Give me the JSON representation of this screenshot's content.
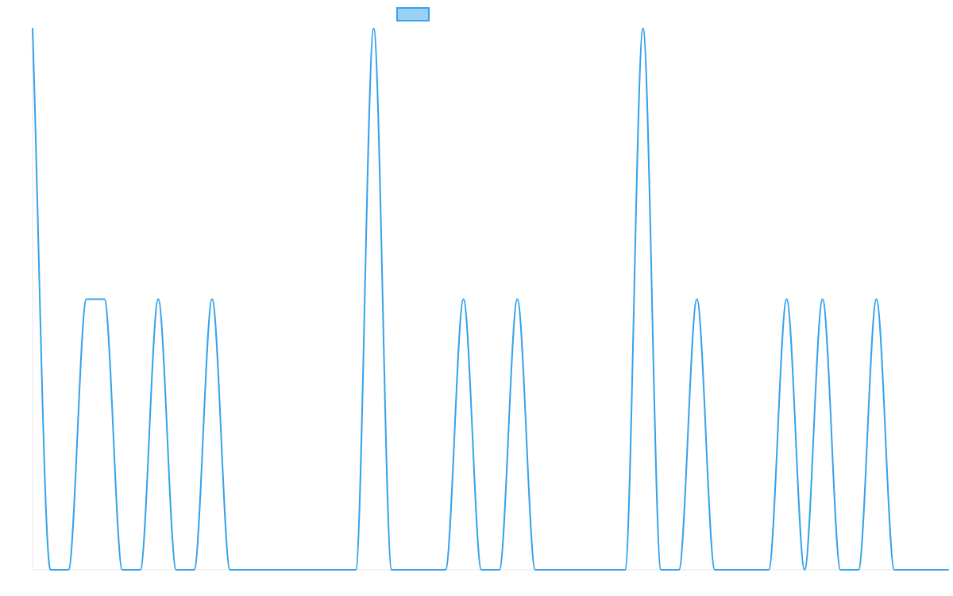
{
  "chart_data": {
    "type": "line",
    "title": "",
    "xlabel": "",
    "ylabel": "",
    "x_range": [
      0,
      51
    ],
    "ylim": [
      0,
      2
    ],
    "grid": false,
    "legend": {
      "placement": "top-center",
      "entries": [
        ""
      ]
    },
    "series": [
      {
        "name": "",
        "color": "#36a2eb",
        "fill_color": "#9ad0f5",
        "values": [
          2,
          0,
          0,
          1,
          1,
          0,
          0,
          1,
          0,
          0,
          1,
          0,
          0,
          0,
          0,
          0,
          0,
          0,
          0,
          2,
          0,
          0,
          0,
          0,
          1,
          0,
          0,
          1,
          0,
          0,
          0,
          0,
          0,
          0,
          2,
          0,
          0,
          1,
          0,
          0,
          0,
          0,
          1,
          0,
          1,
          0,
          0,
          1,
          0,
          0,
          0,
          0
        ]
      }
    ]
  }
}
